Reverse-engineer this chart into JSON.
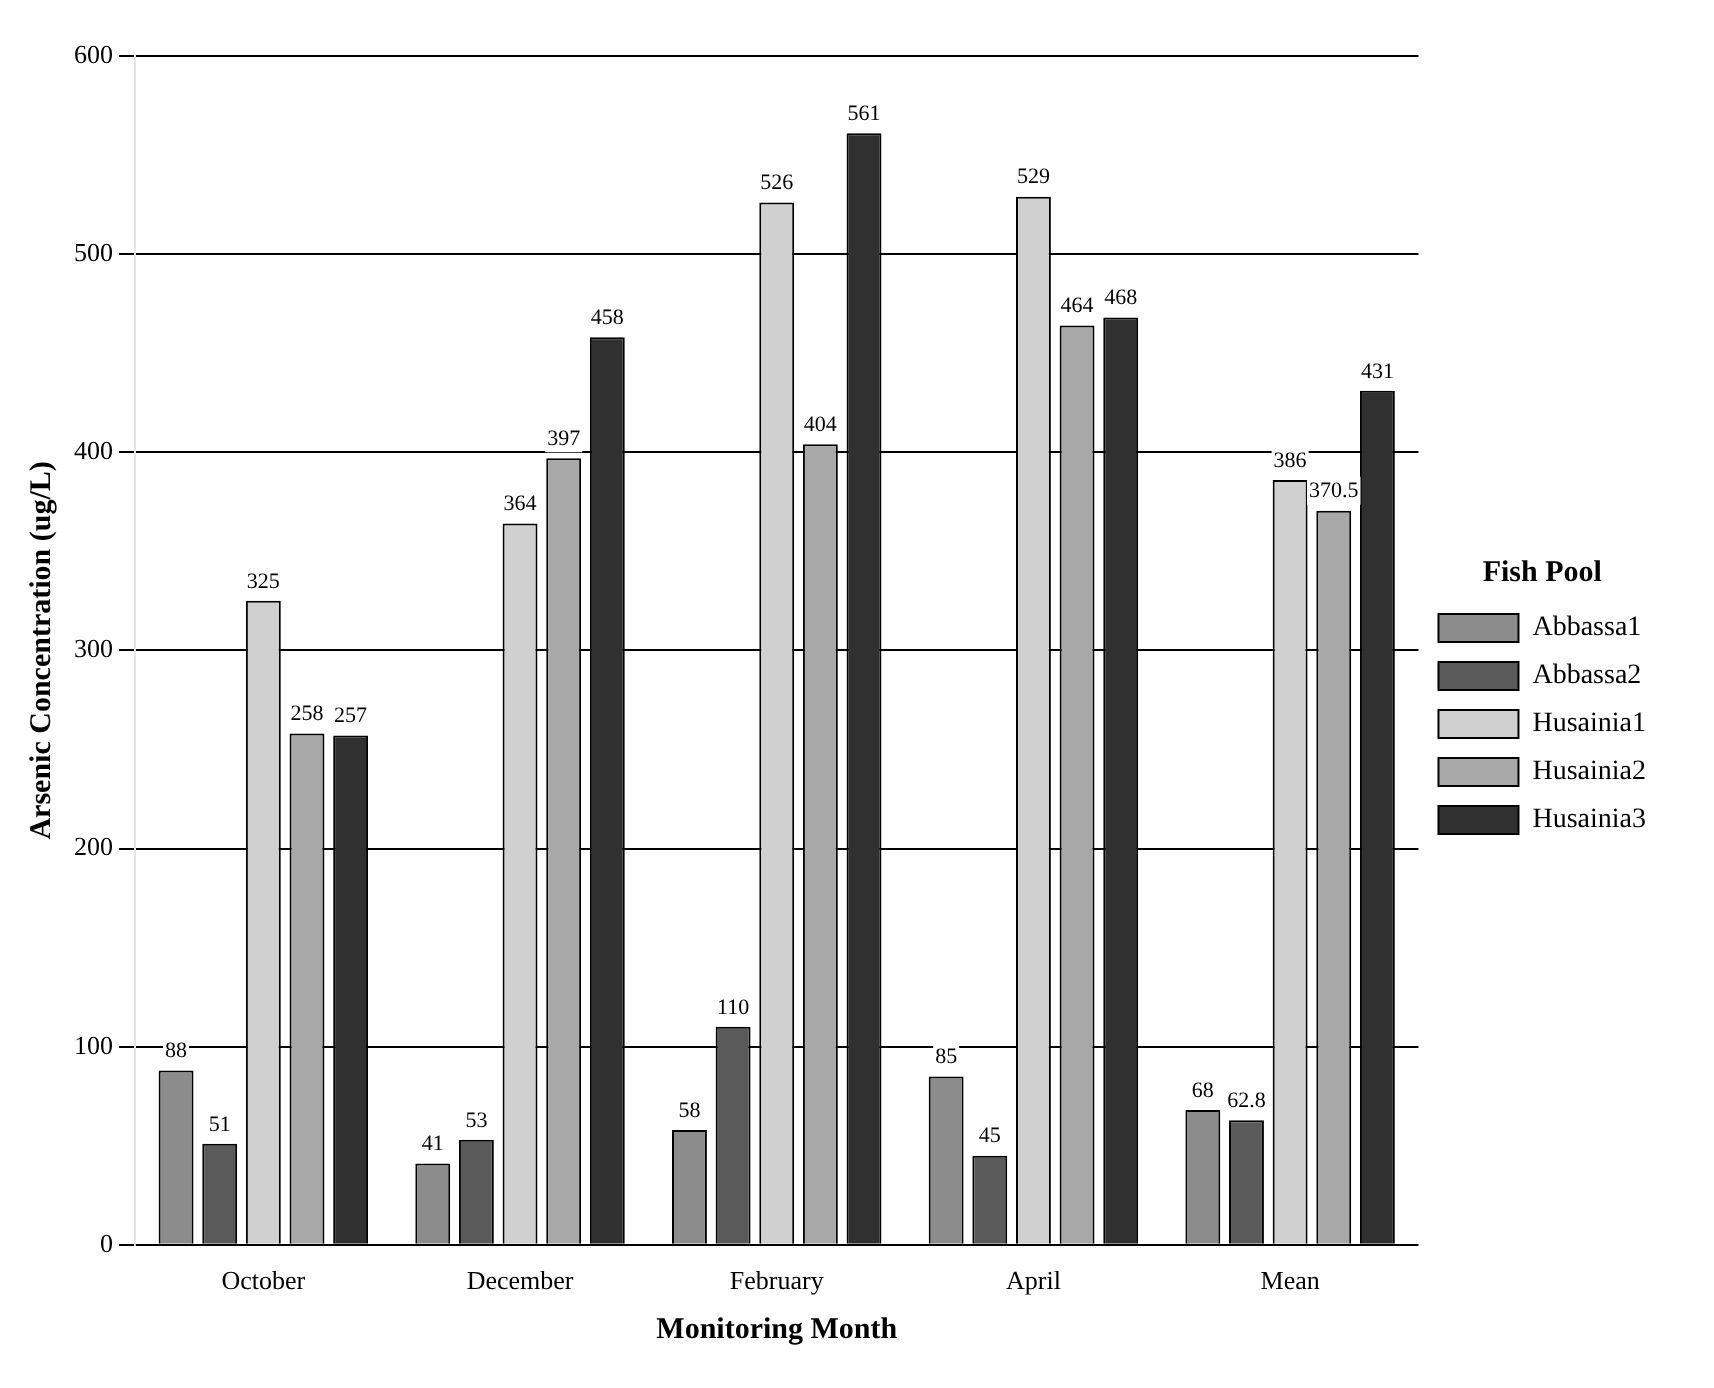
{
  "chart_data": {
    "type": "bar",
    "xlabel": "Monitoring Month",
    "ylabel": "Arsenic Concentration (ug/L)",
    "legend_title": "Fish Pool",
    "categories": [
      "October",
      "December",
      "February",
      "April",
      "Mean"
    ],
    "series": [
      {
        "name": "Abbassa1",
        "color": "#8c8c8c",
        "values": [
          88,
          41,
          58,
          85,
          68
        ]
      },
      {
        "name": "Abbassa2",
        "color": "#5a5a5a",
        "values": [
          51,
          53,
          110,
          45,
          62.8
        ]
      },
      {
        "name": "Husainia1",
        "color": "#d0d0d0",
        "values": [
          325,
          364,
          526,
          529,
          386
        ]
      },
      {
        "name": "Husainia2",
        "color": "#a8a8a8",
        "values": [
          258,
          397,
          404,
          464,
          370.5
        ]
      },
      {
        "name": "Husainia3",
        "color": "#303030",
        "values": [
          257,
          458,
          561,
          468,
          431
        ]
      }
    ],
    "ylim": [
      0,
      600
    ],
    "yticks": [
      0,
      100,
      200,
      300,
      400,
      500,
      600
    ],
    "grid": "y",
    "legend": "right",
    "data_labels": true
  }
}
